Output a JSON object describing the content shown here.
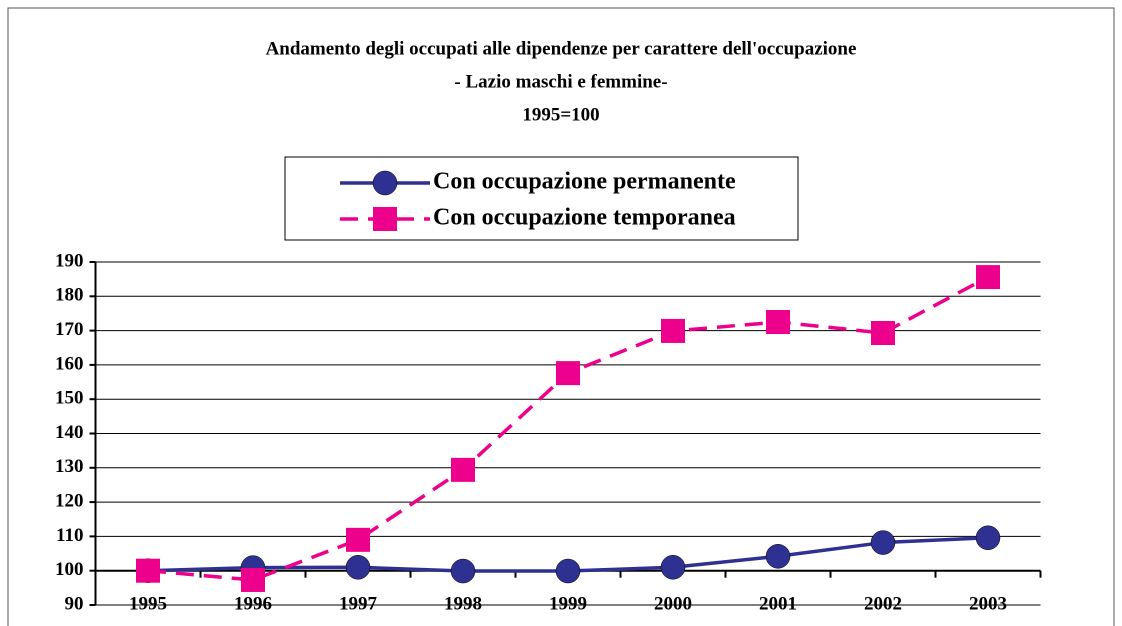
{
  "chart_data": {
    "type": "line",
    "title": [
      "Andamento degli occupati alle dipendenze per carattere dell'occupazione",
      "- Lazio maschi e femmine-",
      "1995=100"
    ],
    "categories": [
      "1995",
      "1996",
      "1997",
      "1998",
      "1999",
      "2000",
      "2001",
      "2002",
      "2003"
    ],
    "series": [
      {
        "name": "Con occupazione permanente",
        "color": "#2e3192",
        "marker": "circle",
        "dash": false,
        "values": [
          100,
          100.9,
          101,
          99.9,
          99.9,
          101,
          104.2,
          108.2,
          109.6
        ]
      },
      {
        "name": "Con occupazione temporanea",
        "color": "#ec008c",
        "marker": "square",
        "dash": true,
        "values": [
          100,
          97.3,
          109,
          129.4,
          157.6,
          169.9,
          172.5,
          169.3,
          185.6
        ]
      }
    ],
    "ylim": [
      90,
      190
    ],
    "yticks": [
      90,
      100,
      110,
      120,
      130,
      140,
      150,
      160,
      170,
      180,
      190
    ],
    "xaxis_at": 100,
    "grid": true,
    "legend": "top"
  }
}
